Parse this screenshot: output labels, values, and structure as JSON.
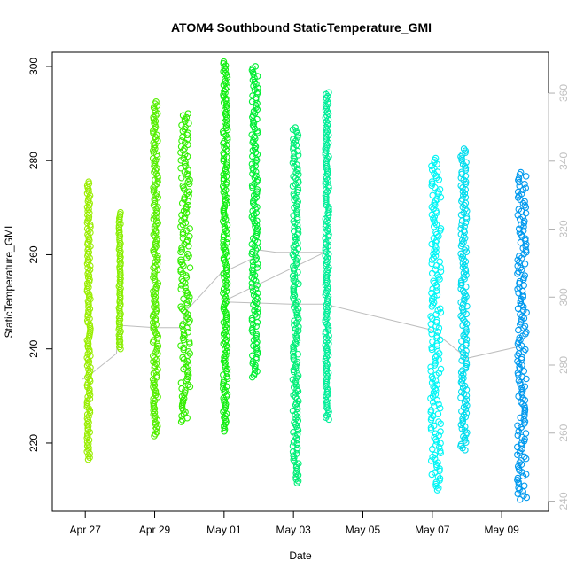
{
  "chart_data": {
    "type": "scatter",
    "title": "ATOM4 Southbound StaticTemperature_GMI",
    "xlabel": "Date",
    "ylabel": "StaticTemperature_GMI",
    "x_tick_labels": [
      "Apr 27",
      "Apr 29",
      "May 01",
      "May 03",
      "May 05",
      "May 07",
      "May 09"
    ],
    "x_ticks_day": [
      0,
      2,
      4,
      6,
      8,
      10,
      12
    ],
    "x_range_day": [
      -0.95,
      13.35
    ],
    "ylim": [
      205.5,
      303
    ],
    "y_ticks": [
      220,
      240,
      260,
      280,
      300
    ],
    "y_right_lim": [
      237,
      372
    ],
    "y_right_ticks": [
      240,
      260,
      280,
      300,
      320,
      340,
      360
    ],
    "grid": false,
    "colors": {
      "track": "#bdbdbd",
      "right_axis": "#b0b0b0"
    },
    "series": [
      {
        "x_day": 0.05,
        "x_day_end": 0.15,
        "y_min": 216.5,
        "y_max": 275.5,
        "color": "#99ee00"
      },
      {
        "x_day": 0.97,
        "x_day_end": 1.02,
        "y_min": 240,
        "y_max": 269,
        "color": "#88ee00"
      },
      {
        "x_day": 1.95,
        "x_day_end": 2.1,
        "y_min": 221.5,
        "y_max": 292.5,
        "color": "#55ee00"
      },
      {
        "x_day": 2.75,
        "x_day_end": 3.02,
        "y_min": 224.5,
        "y_max": 290,
        "color": "#33ee00"
      },
      {
        "x_day": 3.97,
        "x_day_end": 4.1,
        "y_min": 222.5,
        "y_max": 301,
        "color": "#11ee11"
      },
      {
        "x_day": 4.8,
        "x_day_end": 4.97,
        "y_min": 234,
        "y_max": 300,
        "color": "#00ee33"
      },
      {
        "x_day": 5.98,
        "x_day_end": 6.15,
        "y_min": 211.5,
        "y_max": 287,
        "color": "#00ee77"
      },
      {
        "x_day": 6.92,
        "x_day_end": 7.02,
        "y_min": 225,
        "y_max": 294.5,
        "color": "#00ee99"
      },
      {
        "x_day": 9.95,
        "x_day_end": 10.25,
        "y_min": 210,
        "y_max": 280.5,
        "color": "#00f5f5"
      },
      {
        "x_day": 10.82,
        "x_day_end": 11.0,
        "y_min": 218.5,
        "y_max": 282.5,
        "color": "#00ddee"
      },
      {
        "x_day": 12.45,
        "x_day_end": 12.72,
        "y_min": 208,
        "y_max": 277.5,
        "color": "#0099ee"
      }
    ],
    "track_line": [
      [
        -0.1,
        233.5
      ],
      [
        0.05,
        234
      ],
      [
        0.9,
        239
      ],
      [
        0.95,
        244
      ],
      [
        1.0,
        245
      ],
      [
        2.0,
        244.5
      ],
      [
        2.8,
        244.5
      ],
      [
        2.9,
        248
      ],
      [
        3.9,
        256
      ],
      [
        4.9,
        259.5
      ],
      [
        5.0,
        261
      ],
      [
        5.5,
        260.5
      ],
      [
        6.9,
        260.5
      ],
      [
        3.95,
        250
      ],
      [
        5.9,
        249.5
      ],
      [
        6.9,
        249.5
      ],
      [
        10.0,
        244
      ],
      [
        11.0,
        238
      ],
      [
        12.5,
        240.5
      ]
    ]
  }
}
